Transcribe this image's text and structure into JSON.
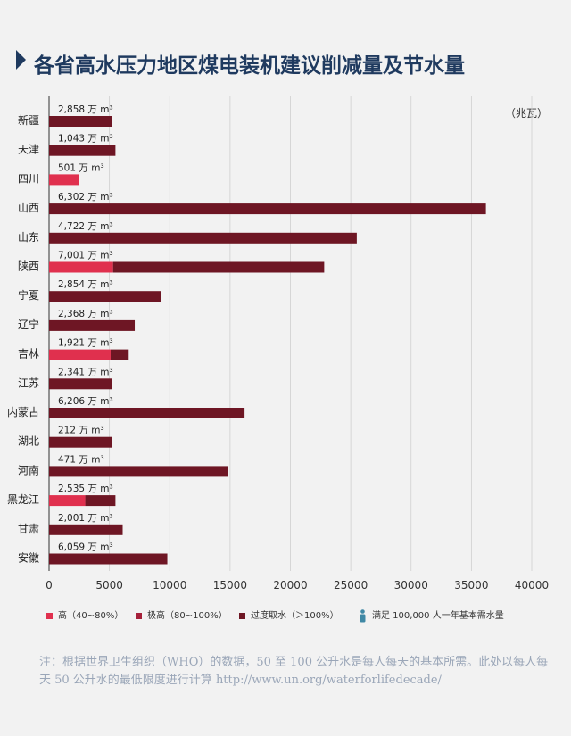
{
  "title": "各省高水压力地区煤电装机建议削减量及节水量",
  "unit_label": "（兆瓦）",
  "colors": {
    "high": "#e0304e",
    "very_high": "#a5203a",
    "over": "#6e1624",
    "people": "#3f88a5",
    "title": "#1f3a5f"
  },
  "chart_data": {
    "type": "bar",
    "orientation": "horizontal",
    "xlim": [
      0,
      40000
    ],
    "xticks": [
      "0",
      "5000",
      "10000",
      "15000",
      "20000",
      "25000",
      "30000",
      "35000",
      "40000"
    ],
    "people_unit": 100000,
    "categories": [
      "新疆",
      "天津",
      "四川",
      "山西",
      "山东",
      "陕西",
      "宁夏",
      "辽宁",
      "吉林",
      "江苏",
      "内蒙古",
      "湖北",
      "河南",
      "黑龙江",
      "甘肃",
      "安徽"
    ],
    "water_labels": [
      "2,858 万 m³",
      "1,043 万 m³",
      "501 万 m³",
      "6,302 万 m³",
      "4,722 万 m³",
      "7,001 万 m³",
      "2,854 万 m³",
      "2,368 万 m³",
      "1,921 万 m³",
      "2,341 万 m³",
      "6,206 万 m³",
      "212 万 m³",
      "471 万 m³",
      "2,535 万 m³",
      "2,001 万 m³",
      "6,059 万 m³"
    ],
    "water_values": [
      2858,
      1043,
      501,
      6302,
      4722,
      7001,
      2854,
      2368,
      1921,
      2341,
      6206,
      212,
      471,
      2535,
      2001,
      6059
    ],
    "series": [
      {
        "name": "高（40–80%）",
        "key": "high",
        "values": [
          0,
          0,
          2500,
          0,
          0,
          5300,
          0,
          0,
          5100,
          0,
          0,
          0,
          0,
          3000,
          0,
          0
        ]
      },
      {
        "name": "极高（80–100%）",
        "key": "very_high",
        "values": [
          0,
          0,
          0,
          0,
          0,
          0,
          0,
          0,
          0,
          0,
          0,
          0,
          0,
          0,
          0,
          0
        ]
      },
      {
        "name": "过度取水（＞100%）",
        "key": "over",
        "values": [
          5200,
          5500,
          0,
          36200,
          25500,
          17500,
          9300,
          7100,
          1500,
          5200,
          16200,
          5200,
          14800,
          2500,
          6100,
          9800
        ]
      }
    ]
  },
  "legend": {
    "high": "高（40~80%）",
    "very_high": "极高（80~100%）",
    "over": "过度取水（＞100%）",
    "people": "满足 100,000 人一年基本需水量"
  },
  "note": "注：根据世界卫生组织（WHO）的数据，50 至 100 公升水是每人每天的基本所需。此处以每人每天 50 公升水的最低限度进行计算 http://www.un.org/waterforlifedecade/"
}
